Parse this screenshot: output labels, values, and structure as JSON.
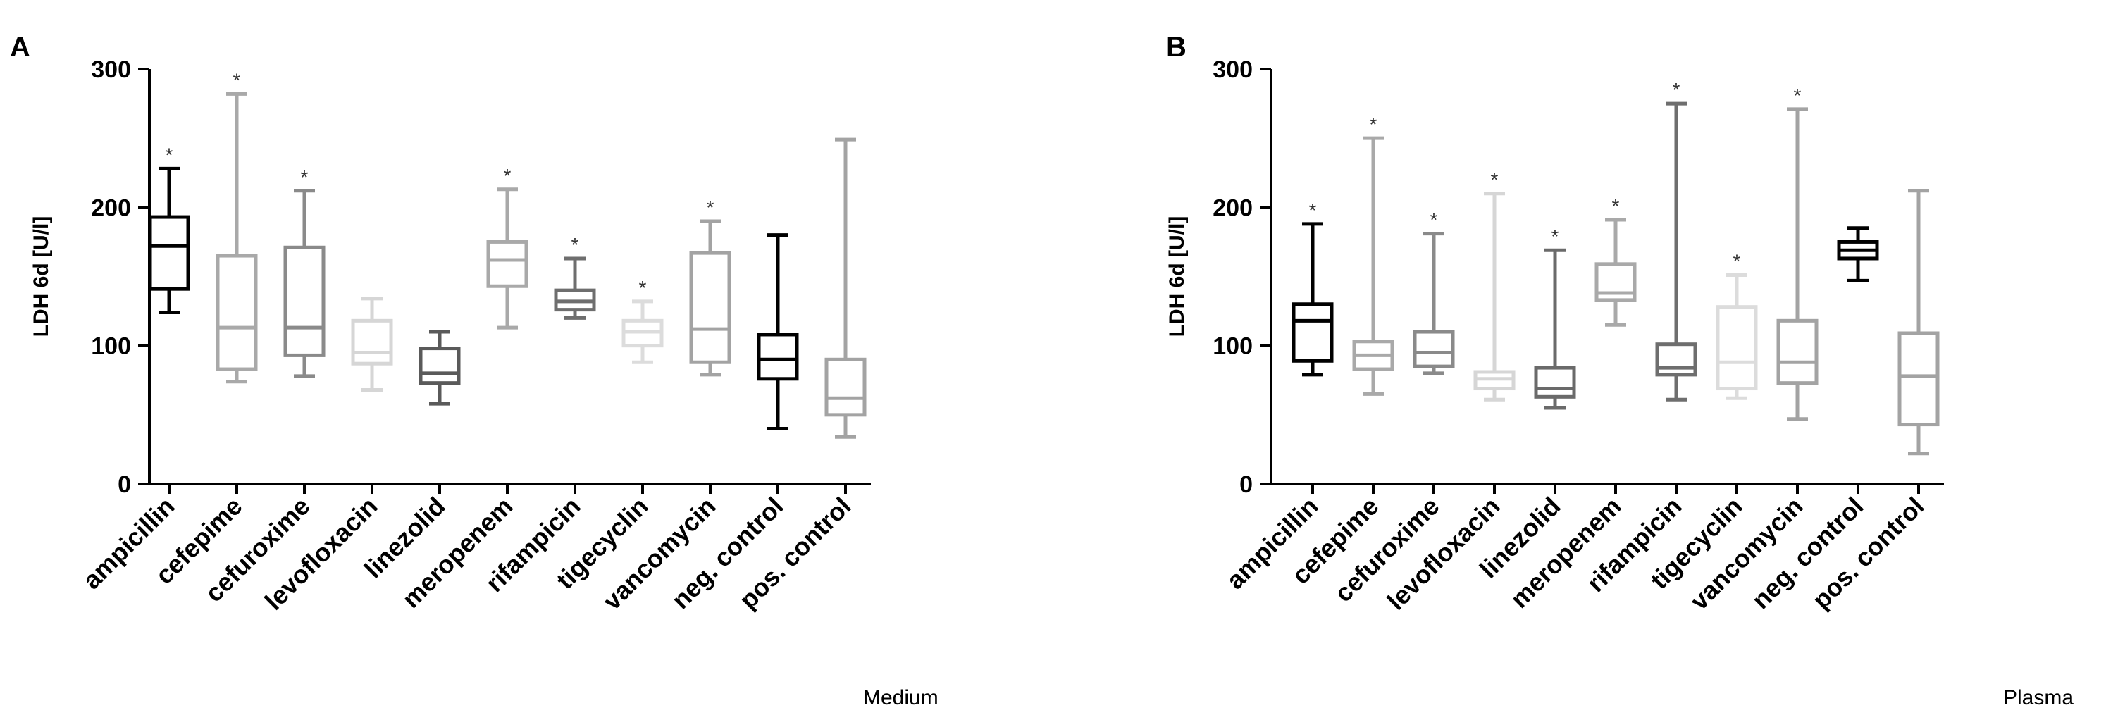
{
  "chart_data": [
    {
      "type": "boxplot",
      "panel": "A",
      "caption": "Medium",
      "title": "",
      "xlabel": "",
      "ylabel": "LDH 6d [U/l]",
      "ylim": [
        0,
        300
      ],
      "yticks": [
        0,
        100,
        200,
        300
      ],
      "grid": false,
      "significance_marker": "*",
      "categories": [
        "ampicillin",
        "cefepime",
        "cefuroxime",
        "levofloxacin",
        "linezolid",
        "meropenem",
        "rifampicin",
        "tigecyclin",
        "vancomycin",
        "neg. control",
        "pos. control"
      ],
      "colors": [
        "#000000",
        "#a9a9a9",
        "#8a8a8a",
        "#d6d6d6",
        "#5a5a5a",
        "#a9a9a9",
        "#6e6e6e",
        "#dcdcdc",
        "#a3a3a3",
        "#000000",
        "#a3a3a3"
      ],
      "boxes": [
        {
          "min": 124,
          "q1": 141,
          "median": 172,
          "q3": 193,
          "max": 228,
          "significant": true
        },
        {
          "min": 74,
          "q1": 83,
          "median": 113,
          "q3": 165,
          "max": 282,
          "significant": true
        },
        {
          "min": 78,
          "q1": 93,
          "median": 113,
          "q3": 171,
          "max": 212,
          "significant": true
        },
        {
          "min": 68,
          "q1": 87,
          "median": 95,
          "q3": 118,
          "max": 134,
          "significant": false
        },
        {
          "min": 58,
          "q1": 73,
          "median": 80,
          "q3": 98,
          "max": 110,
          "significant": false
        },
        {
          "min": 113,
          "q1": 143,
          "median": 162,
          "q3": 175,
          "max": 213,
          "significant": true
        },
        {
          "min": 120,
          "q1": 126,
          "median": 132,
          "q3": 140,
          "max": 163,
          "significant": true
        },
        {
          "min": 88,
          "q1": 100,
          "median": 110,
          "q3": 118,
          "max": 132,
          "significant": true
        },
        {
          "min": 79,
          "q1": 88,
          "median": 112,
          "q3": 167,
          "max": 190,
          "significant": true
        },
        {
          "min": 40,
          "q1": 76,
          "median": 90,
          "q3": 108,
          "max": 180,
          "significant": false
        },
        {
          "min": 34,
          "q1": 50,
          "median": 62,
          "q3": 90,
          "max": 249,
          "significant": false
        }
      ]
    },
    {
      "type": "boxplot",
      "panel": "B",
      "caption": "Plasma",
      "title": "",
      "xlabel": "",
      "ylabel": "LDH 6d [U/l]",
      "ylim": [
        0,
        300
      ],
      "yticks": [
        0,
        100,
        200,
        300
      ],
      "grid": false,
      "significance_marker": "*",
      "categories": [
        "ampicillin",
        "cefepime",
        "cefuroxime",
        "levofloxacin",
        "linezolid",
        "meropenem",
        "rifampicin",
        "tigecyclin",
        "vancomycin",
        "neg. control",
        "pos. control"
      ],
      "colors": [
        "#000000",
        "#a9a9a9",
        "#8a8a8a",
        "#d6d6d6",
        "#6a6a6a",
        "#a9a9a9",
        "#6e6e6e",
        "#dcdcdc",
        "#a3a3a3",
        "#000000",
        "#a3a3a3"
      ],
      "boxes": [
        {
          "min": 79,
          "q1": 89,
          "median": 118,
          "q3": 130,
          "max": 188,
          "significant": true
        },
        {
          "min": 65,
          "q1": 83,
          "median": 93,
          "q3": 103,
          "max": 250,
          "significant": true
        },
        {
          "min": 80,
          "q1": 85,
          "median": 95,
          "q3": 110,
          "max": 181,
          "significant": true
        },
        {
          "min": 61,
          "q1": 69,
          "median": 76,
          "q3": 81,
          "max": 210,
          "significant": true
        },
        {
          "min": 55,
          "q1": 63,
          "median": 69,
          "q3": 84,
          "max": 169,
          "significant": true
        },
        {
          "min": 115,
          "q1": 133,
          "median": 138,
          "q3": 159,
          "max": 191,
          "significant": true
        },
        {
          "min": 61,
          "q1": 79,
          "median": 84,
          "q3": 101,
          "max": 275,
          "significant": true
        },
        {
          "min": 62,
          "q1": 69,
          "median": 88,
          "q3": 128,
          "max": 151,
          "significant": true
        },
        {
          "min": 47,
          "q1": 73,
          "median": 88,
          "q3": 118,
          "max": 271,
          "significant": true
        },
        {
          "min": 147,
          "q1": 163,
          "median": 169,
          "q3": 175,
          "max": 185,
          "significant": false
        },
        {
          "min": 22,
          "q1": 43,
          "median": 78,
          "q3": 109,
          "max": 212,
          "significant": false
        }
      ]
    }
  ]
}
